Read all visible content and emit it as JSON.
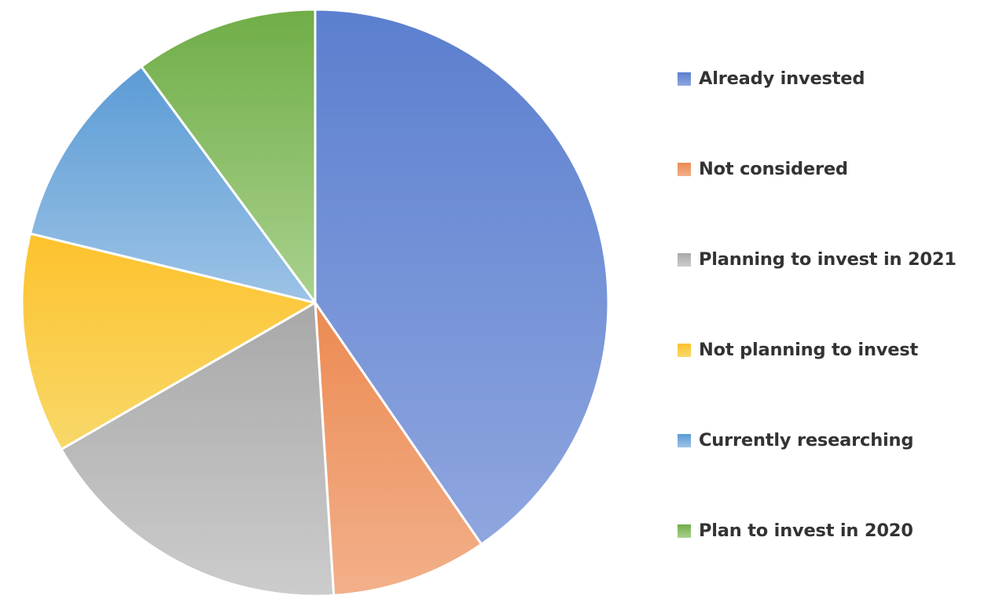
{
  "chart_data": {
    "type": "pie",
    "title": "",
    "start_angle_deg": 0,
    "direction": "clockwise",
    "slices": [
      {
        "label": "Already invested",
        "value": 40,
        "color": "#5B7FCF",
        "color_light": "#8FA6DF"
      },
      {
        "label": "Not considered",
        "value": 8.5,
        "color": "#EC8A52",
        "color_light": "#F2B08A"
      },
      {
        "label": "Planning to invest in 2021",
        "value": 17.5,
        "color": "#A8A8A8",
        "color_light": "#CCCCCC"
      },
      {
        "label": "Not planning to invest",
        "value": 12,
        "color": "#FDC22C",
        "color_light": "#F8D86A"
      },
      {
        "label": "Currently researching",
        "value": 11,
        "color": "#5B9BD5",
        "color_light": "#9CC3E6"
      },
      {
        "label": "Plan to invest in 2020",
        "value": 10,
        "color": "#70AD47",
        "color_light": "#A9D18E"
      }
    ],
    "legend_position": "right"
  }
}
